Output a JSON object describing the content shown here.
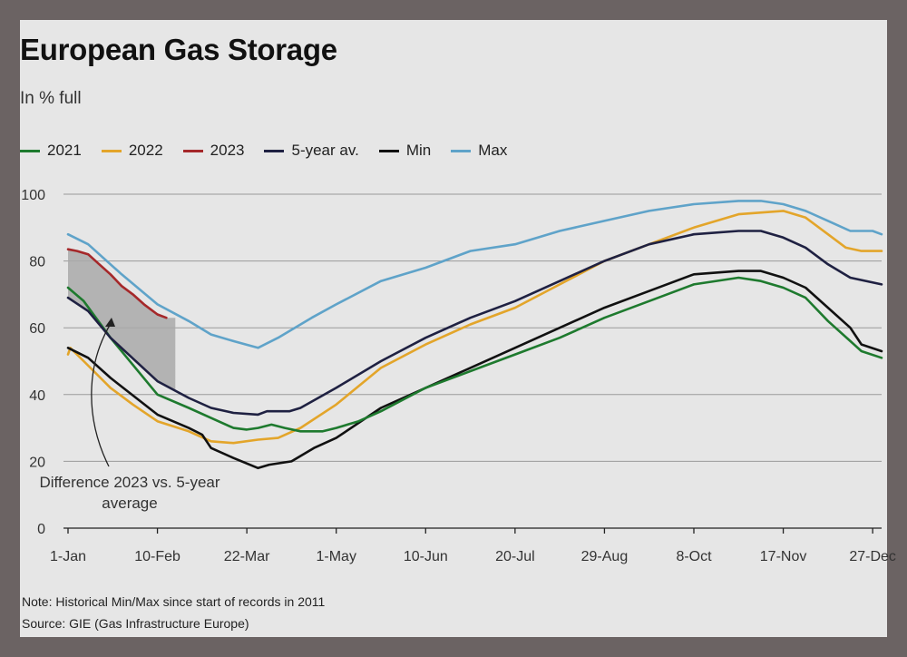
{
  "chart_data": {
    "type": "line",
    "title": "European Gas Storage",
    "subtitle": "In % full",
    "ylim": [
      0,
      100
    ],
    "yticks": [
      0,
      20,
      40,
      60,
      80,
      100
    ],
    "xlim": [
      1,
      365
    ],
    "xticks": [
      {
        "day": 1,
        "label": "1-Jan"
      },
      {
        "day": 41,
        "label": "10-Feb"
      },
      {
        "day": 81,
        "label": "22-Mar"
      },
      {
        "day": 121,
        "label": "1-May"
      },
      {
        "day": 161,
        "label": "10-Jun"
      },
      {
        "day": 201,
        "label": "20-Jul"
      },
      {
        "day": 241,
        "label": "29-Aug"
      },
      {
        "day": 281,
        "label": "8-Oct"
      },
      {
        "day": 321,
        "label": "17-Nov"
      },
      {
        "day": 361,
        "label": "27-Dec"
      }
    ],
    "grid": true,
    "legend_position": "top-left",
    "series": [
      {
        "name": "Max",
        "color": "#5fa3c9",
        "points": [
          [
            1,
            88
          ],
          [
            10,
            85
          ],
          [
            25,
            76
          ],
          [
            41,
            67
          ],
          [
            55,
            62
          ],
          [
            65,
            58
          ],
          [
            75,
            56
          ],
          [
            86,
            54
          ],
          [
            95,
            57
          ],
          [
            110,
            63
          ],
          [
            121,
            67
          ],
          [
            141,
            74
          ],
          [
            161,
            78
          ],
          [
            181,
            83
          ],
          [
            201,
            85
          ],
          [
            221,
            89
          ],
          [
            241,
            92
          ],
          [
            261,
            95
          ],
          [
            281,
            97
          ],
          [
            301,
            98
          ],
          [
            311,
            98
          ],
          [
            321,
            97
          ],
          [
            331,
            95
          ],
          [
            341,
            92
          ],
          [
            351,
            89
          ],
          [
            361,
            89
          ],
          [
            365,
            88
          ]
        ]
      },
      {
        "name": "2022",
        "color": "#e3a52a",
        "points": [
          [
            1,
            52
          ],
          [
            2,
            54
          ],
          [
            8,
            50
          ],
          [
            20,
            42
          ],
          [
            30,
            37
          ],
          [
            41,
            32
          ],
          [
            55,
            29
          ],
          [
            65,
            26
          ],
          [
            75,
            25.5
          ],
          [
            86,
            26.5
          ],
          [
            95,
            27
          ],
          [
            105,
            30
          ],
          [
            121,
            37
          ],
          [
            141,
            48
          ],
          [
            161,
            55
          ],
          [
            181,
            61
          ],
          [
            201,
            66
          ],
          [
            221,
            73
          ],
          [
            241,
            80
          ],
          [
            261,
            85
          ],
          [
            281,
            90
          ],
          [
            301,
            94
          ],
          [
            321,
            95
          ],
          [
            331,
            93
          ],
          [
            341,
            88
          ],
          [
            349,
            84
          ],
          [
            356,
            83
          ],
          [
            365,
            83
          ]
        ]
      },
      {
        "name": "Min",
        "color": "#111111",
        "points": [
          [
            1,
            54
          ],
          [
            10,
            51
          ],
          [
            20,
            45
          ],
          [
            41,
            34
          ],
          [
            55,
            30
          ],
          [
            61,
            28
          ],
          [
            65,
            24
          ],
          [
            75,
            21
          ],
          [
            86,
            18
          ],
          [
            91,
            19
          ],
          [
            101,
            20
          ],
          [
            111,
            24
          ],
          [
            121,
            27
          ],
          [
            141,
            36
          ],
          [
            161,
            42
          ],
          [
            181,
            48
          ],
          [
            201,
            54
          ],
          [
            221,
            60
          ],
          [
            241,
            66
          ],
          [
            261,
            71
          ],
          [
            281,
            76
          ],
          [
            301,
            77
          ],
          [
            311,
            77
          ],
          [
            321,
            75
          ],
          [
            331,
            72
          ],
          [
            341,
            66
          ],
          [
            351,
            60
          ],
          [
            356,
            55
          ],
          [
            365,
            53
          ]
        ]
      },
      {
        "name": "2021",
        "color": "#1e7a2e",
        "points": [
          [
            1,
            72
          ],
          [
            8,
            68
          ],
          [
            20,
            57
          ],
          [
            41,
            40
          ],
          [
            55,
            36
          ],
          [
            65,
            33
          ],
          [
            75,
            30
          ],
          [
            81,
            29.5
          ],
          [
            86,
            30
          ],
          [
            92,
            31
          ],
          [
            98,
            30
          ],
          [
            105,
            29
          ],
          [
            115,
            29
          ],
          [
            121,
            30
          ],
          [
            131,
            32
          ],
          [
            141,
            35
          ],
          [
            161,
            42
          ],
          [
            181,
            47
          ],
          [
            201,
            52
          ],
          [
            221,
            57
          ],
          [
            241,
            63
          ],
          [
            261,
            68
          ],
          [
            281,
            73
          ],
          [
            301,
            75
          ],
          [
            311,
            74
          ],
          [
            321,
            72
          ],
          [
            331,
            69
          ],
          [
            341,
            62
          ],
          [
            351,
            56
          ],
          [
            356,
            53
          ],
          [
            365,
            51
          ]
        ]
      },
      {
        "name": "5-year av.",
        "color": "#1f2142",
        "points": [
          [
            1,
            69
          ],
          [
            10,
            65
          ],
          [
            20,
            57
          ],
          [
            41,
            44
          ],
          [
            55,
            39
          ],
          [
            65,
            36
          ],
          [
            75,
            34.5
          ],
          [
            86,
            34
          ],
          [
            90,
            35
          ],
          [
            100,
            35
          ],
          [
            105,
            36
          ],
          [
            121,
            42
          ],
          [
            141,
            50
          ],
          [
            161,
            57
          ],
          [
            181,
            63
          ],
          [
            201,
            68
          ],
          [
            221,
            74
          ],
          [
            241,
            80
          ],
          [
            261,
            85
          ],
          [
            281,
            88
          ],
          [
            301,
            89
          ],
          [
            311,
            89
          ],
          [
            321,
            87
          ],
          [
            331,
            84
          ],
          [
            341,
            79
          ],
          [
            351,
            75
          ],
          [
            365,
            73
          ]
        ]
      },
      {
        "name": "2023",
        "color": "#a5282a",
        "points": [
          [
            1,
            83.5
          ],
          [
            5,
            83
          ],
          [
            10,
            82
          ],
          [
            15,
            79
          ],
          [
            20,
            76
          ],
          [
            25,
            72.5
          ],
          [
            30,
            70
          ],
          [
            35,
            67
          ],
          [
            41,
            64
          ],
          [
            45,
            63
          ]
        ]
      }
    ],
    "shaded_region": {
      "from_series": "2023",
      "to_series": "5-year av.",
      "x_range": [
        1,
        49
      ],
      "color": "#a9a9a9"
    },
    "annotation": {
      "lines": [
        "Difference 2023 vs. 5-year",
        "average"
      ]
    }
  },
  "legend_order": [
    "2021",
    "2022",
    "2023",
    "5-year av.",
    "Min",
    "Max"
  ],
  "footer": {
    "note": "Note: Historical Min/Max since start of records in 2011",
    "source": "Source: GIE (Gas Infrastructure Europe)"
  }
}
